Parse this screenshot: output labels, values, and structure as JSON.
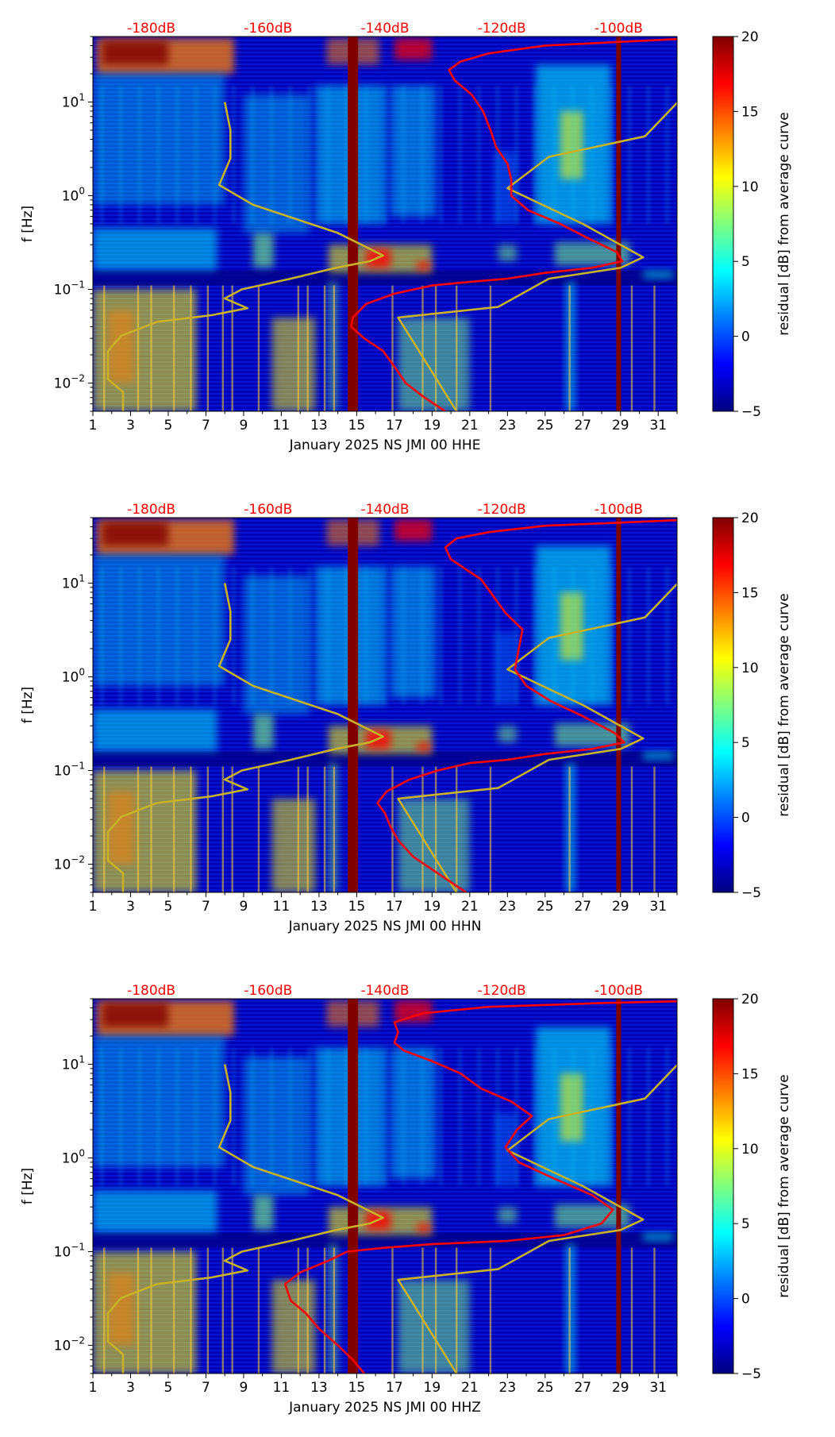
{
  "figure": {
    "colorbar_label": "residual [dB] from average curve",
    "colorbar_ticks": [
      "20",
      "15",
      "10",
      "5",
      "0",
      "−5"
    ],
    "colorbar_values": [
      20,
      15,
      10,
      5,
      0,
      -5
    ],
    "colormap": [
      "#00007f",
      "#0000ff",
      "#007fff",
      "#00ffff",
      "#7fff7f",
      "#ffff00",
      "#ff7f00",
      "#ff0000",
      "#7f0000"
    ],
    "top_db_labels": [
      "-180dB",
      "-160dB",
      "-140dB",
      "-120dB",
      "-100dB"
    ],
    "top_db_values": [
      -180,
      -160,
      -140,
      -120,
      -100
    ],
    "x_ticks": [
      "1",
      "3",
      "5",
      "7",
      "9",
      "11",
      "13",
      "15",
      "17",
      "19",
      "21",
      "23",
      "25",
      "27",
      "29",
      "31"
    ],
    "y_label": "f [Hz]",
    "y_tick_labels": [
      {
        "base": "10",
        "exp": "1",
        "value": 10
      },
      {
        "base": "10",
        "exp": "0",
        "value": 1
      },
      {
        "base": "10",
        "exp": "−1",
        "value": 0.1
      },
      {
        "base": "10",
        "exp": "−2",
        "value": 0.01
      }
    ],
    "ylim": [
      0.005,
      50
    ],
    "xlim": [
      1,
      32
    ],
    "db_axis_range": [
      -190,
      -90
    ],
    "gap_days": [
      14.8,
      28.9
    ],
    "gap_color": "#800000",
    "psd_curve_color": "#ff0000",
    "model_curve_color": "#c8b22a"
  },
  "chart_data": [
    {
      "type": "heatmap",
      "xlabel": "January 2025 NS JMI 00 HHE",
      "ylabel": "f [Hz]",
      "xlim": [
        1,
        32
      ],
      "ylim": [
        0.005,
        50
      ],
      "colorbar_range": [
        -5,
        20
      ],
      "series": [
        {
          "name": "PSD median (red)",
          "points": [
            [
              19.7,
              0.005
            ],
            [
              18.6,
              0.007
            ],
            [
              17.6,
              0.01
            ],
            [
              17.0,
              0.015
            ],
            [
              16.4,
              0.022
            ],
            [
              15.4,
              0.03
            ],
            [
              14.7,
              0.04
            ],
            [
              14.8,
              0.05
            ],
            [
              15.5,
              0.07
            ],
            [
              17.0,
              0.09
            ],
            [
              19.0,
              0.11
            ],
            [
              21.0,
              0.12
            ],
            [
              23.0,
              0.13
            ],
            [
              25.0,
              0.15
            ],
            [
              27.5,
              0.17
            ],
            [
              29.1,
              0.2
            ],
            [
              28.8,
              0.25
            ],
            [
              27.3,
              0.35
            ],
            [
              25.8,
              0.5
            ],
            [
              24.1,
              0.7
            ],
            [
              23.2,
              1.0
            ],
            [
              23.2,
              1.5
            ],
            [
              23.0,
              2.2
            ],
            [
              22.4,
              3.3
            ],
            [
              22.1,
              5.0
            ],
            [
              21.7,
              8.0
            ],
            [
              21.1,
              12.0
            ],
            [
              20.2,
              17.0
            ],
            [
              19.9,
              22.0
            ],
            [
              20.5,
              27.0
            ],
            [
              22.0,
              33.0
            ],
            [
              25.0,
              40.0
            ],
            [
              32.0,
              47.0
            ]
          ]
        },
        {
          "name": "Noise model (olive)",
          "points": [
            [
              2.6,
              0.005
            ],
            [
              2.6,
              0.008
            ],
            [
              1.8,
              0.011
            ],
            [
              1.8,
              0.017
            ],
            [
              1.8,
              0.022
            ],
            [
              2.5,
              0.032
            ],
            [
              4.4,
              0.045
            ],
            [
              7.3,
              0.053
            ],
            [
              9.2,
              0.063
            ],
            [
              8.0,
              0.08
            ],
            [
              8.9,
              0.1
            ],
            [
              11.5,
              0.13
            ],
            [
              13.9,
              0.17
            ],
            [
              15.7,
              0.2
            ],
            [
              16.4,
              0.23
            ],
            [
              14.0,
              0.4
            ],
            [
              9.5,
              0.8
            ],
            [
              7.7,
              1.3
            ],
            [
              8.3,
              2.5
            ],
            [
              8.3,
              5.0
            ],
            [
              8.0,
              10.0
            ]
          ]
        },
        {
          "name": "Noise model high (olive)",
          "points": [
            [
              20.3,
              0.005
            ],
            [
              17.2,
              0.05
            ],
            [
              22.5,
              0.065
            ],
            [
              25.2,
              0.13
            ],
            [
              29.0,
              0.17
            ],
            [
              30.2,
              0.22
            ],
            [
              27.0,
              0.5
            ],
            [
              23.0,
              1.2
            ],
            [
              25.2,
              2.6
            ],
            [
              30.3,
              4.3
            ],
            [
              32.0,
              9.8
            ]
          ]
        }
      ]
    },
    {
      "type": "heatmap",
      "xlabel": "January 2025 NS JMI 00 HHN",
      "ylabel": "f [Hz]",
      "xlim": [
        1,
        32
      ],
      "ylim": [
        0.005,
        50
      ],
      "colorbar_range": [
        -5,
        20
      ],
      "series": [
        {
          "name": "PSD median (red)",
          "points": [
            [
              20.8,
              0.005
            ],
            [
              19.3,
              0.008
            ],
            [
              18.0,
              0.012
            ],
            [
              17.2,
              0.018
            ],
            [
              16.8,
              0.025
            ],
            [
              16.5,
              0.035
            ],
            [
              16.1,
              0.045
            ],
            [
              16.6,
              0.06
            ],
            [
              17.8,
              0.08
            ],
            [
              19.3,
              0.1
            ],
            [
              21.0,
              0.12
            ],
            [
              23.0,
              0.13
            ],
            [
              25.0,
              0.15
            ],
            [
              27.5,
              0.17
            ],
            [
              29.2,
              0.2
            ],
            [
              28.7,
              0.25
            ],
            [
              27.0,
              0.38
            ],
            [
              25.3,
              0.55
            ],
            [
              24.0,
              0.8
            ],
            [
              23.4,
              1.2
            ],
            [
              23.6,
              2.0
            ],
            [
              23.8,
              3.2
            ],
            [
              22.9,
              4.8
            ],
            [
              22.2,
              7.5
            ],
            [
              21.6,
              11.0
            ],
            [
              20.8,
              14.0
            ],
            [
              20.0,
              18.0
            ],
            [
              19.7,
              24.0
            ],
            [
              20.3,
              30.0
            ],
            [
              22.0,
              35.0
            ],
            [
              25.0,
              41.0
            ],
            [
              32.0,
              47.0
            ]
          ]
        },
        {
          "name": "Noise model (olive)",
          "points": [
            [
              2.6,
              0.005
            ],
            [
              2.6,
              0.008
            ],
            [
              1.8,
              0.011
            ],
            [
              1.8,
              0.017
            ],
            [
              1.8,
              0.022
            ],
            [
              2.5,
              0.032
            ],
            [
              4.4,
              0.045
            ],
            [
              7.3,
              0.053
            ],
            [
              9.2,
              0.063
            ],
            [
              8.0,
              0.08
            ],
            [
              8.9,
              0.1
            ],
            [
              11.5,
              0.13
            ],
            [
              13.9,
              0.17
            ],
            [
              15.7,
              0.2
            ],
            [
              16.4,
              0.23
            ],
            [
              14.0,
              0.4
            ],
            [
              9.5,
              0.8
            ],
            [
              7.7,
              1.3
            ],
            [
              8.3,
              2.5
            ],
            [
              8.3,
              5.0
            ],
            [
              8.0,
              10.0
            ]
          ]
        },
        {
          "name": "Noise model high (olive)",
          "points": [
            [
              20.3,
              0.005
            ],
            [
              17.2,
              0.05
            ],
            [
              22.5,
              0.065
            ],
            [
              25.2,
              0.13
            ],
            [
              29.0,
              0.17
            ],
            [
              30.2,
              0.22
            ],
            [
              27.0,
              0.5
            ],
            [
              23.0,
              1.2
            ],
            [
              25.2,
              2.6
            ],
            [
              30.3,
              4.3
            ],
            [
              32.0,
              9.8
            ]
          ]
        }
      ]
    },
    {
      "type": "heatmap",
      "xlabel": "January 2025 NS JMI 00 HHZ",
      "ylabel": "f [Hz]",
      "xlim": [
        1,
        32
      ],
      "ylim": [
        0.005,
        50
      ],
      "colorbar_range": [
        -5,
        20
      ],
      "series": [
        {
          "name": "PSD median (red)",
          "points": [
            [
              15.4,
              0.005
            ],
            [
              14.8,
              0.007
            ],
            [
              14.0,
              0.01
            ],
            [
              13.0,
              0.015
            ],
            [
              12.3,
              0.022
            ],
            [
              11.5,
              0.03
            ],
            [
              11.2,
              0.045
            ],
            [
              12.0,
              0.06
            ],
            [
              13.5,
              0.08
            ],
            [
              14.5,
              0.1
            ],
            [
              16.5,
              0.11
            ],
            [
              19.0,
              0.12
            ],
            [
              23.0,
              0.13
            ],
            [
              26.0,
              0.15
            ],
            [
              28.0,
              0.2
            ],
            [
              28.6,
              0.28
            ],
            [
              27.5,
              0.4
            ],
            [
              25.5,
              0.6
            ],
            [
              23.6,
              0.9
            ],
            [
              22.9,
              1.3
            ],
            [
              23.5,
              2.0
            ],
            [
              24.3,
              2.8
            ],
            [
              23.2,
              4.0
            ],
            [
              21.6,
              5.5
            ],
            [
              20.5,
              8.0
            ],
            [
              18.9,
              11.0
            ],
            [
              17.5,
              14.0
            ],
            [
              17.0,
              17.0
            ],
            [
              17.2,
              22.0
            ],
            [
              17.0,
              28.0
            ],
            [
              18.5,
              35.0
            ],
            [
              22.0,
              41.0
            ],
            [
              28.0,
              45.0
            ],
            [
              32.0,
              47.0
            ]
          ]
        },
        {
          "name": "Noise model (olive)",
          "points": [
            [
              2.6,
              0.005
            ],
            [
              2.6,
              0.008
            ],
            [
              1.8,
              0.011
            ],
            [
              1.8,
              0.017
            ],
            [
              1.8,
              0.022
            ],
            [
              2.5,
              0.032
            ],
            [
              4.4,
              0.045
            ],
            [
              7.3,
              0.053
            ],
            [
              9.2,
              0.063
            ],
            [
              8.0,
              0.08
            ],
            [
              8.9,
              0.1
            ],
            [
              11.5,
              0.13
            ],
            [
              13.9,
              0.17
            ],
            [
              15.7,
              0.2
            ],
            [
              16.4,
              0.23
            ],
            [
              14.0,
              0.4
            ],
            [
              9.5,
              0.8
            ],
            [
              7.7,
              1.3
            ],
            [
              8.3,
              2.5
            ],
            [
              8.3,
              5.0
            ],
            [
              8.0,
              10.0
            ]
          ]
        },
        {
          "name": "Noise model high (olive)",
          "points": [
            [
              20.3,
              0.005
            ],
            [
              17.2,
              0.05
            ],
            [
              22.5,
              0.065
            ],
            [
              25.2,
              0.13
            ],
            [
              29.0,
              0.17
            ],
            [
              30.2,
              0.22
            ],
            [
              27.0,
              0.5
            ],
            [
              23.0,
              1.2
            ],
            [
              25.2,
              2.6
            ],
            [
              30.3,
              4.3
            ],
            [
              32.0,
              9.8
            ]
          ]
        }
      ]
    }
  ]
}
